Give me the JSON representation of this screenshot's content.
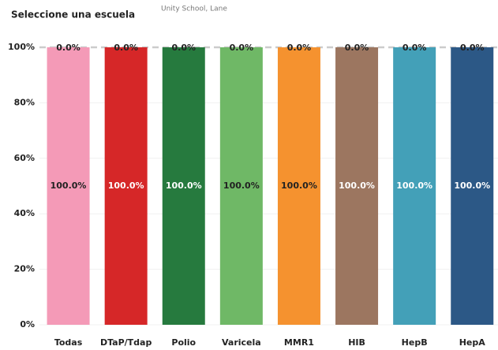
{
  "chart_data": {
    "type": "bar",
    "title": "Seleccione una escuela",
    "subtitle": "Unity School, Lane",
    "categories": [
      "Todas",
      "DTaP/Tdap",
      "Polio",
      "Varicela",
      "MMR1",
      "HIB",
      "HepB",
      "HepA"
    ],
    "colors": [
      "#f49ab7",
      "#d62728",
      "#267a3e",
      "#6fb866",
      "#f5922f",
      "#9c7660",
      "#43a0b8",
      "#2c5886"
    ],
    "series": [
      {
        "values": [
          100,
          100,
          100,
          100,
          100,
          100,
          100,
          100
        ],
        "value_labels": [
          "100.0%",
          "100.0%",
          "100.0%",
          "100.0%",
          "100.0%",
          "100.0%",
          "100.0%",
          "100.0%"
        ]
      },
      {
        "values": [
          0,
          0,
          0,
          0,
          0,
          0,
          0,
          0
        ],
        "value_labels": [
          "0.0%",
          "0.0%",
          "0.0%",
          "0.0%",
          "0.0%",
          "0.0%",
          "0.0%",
          "0.0%"
        ]
      }
    ],
    "stacked": true,
    "ylim": [
      0,
      100
    ],
    "yticks": [
      {
        "value": 0,
        "label": "0%"
      },
      {
        "value": 20,
        "label": "20%"
      },
      {
        "value": 40,
        "label": "40%"
      },
      {
        "value": 60,
        "label": "60%"
      },
      {
        "value": 80,
        "label": "80%"
      },
      {
        "value": 100,
        "label": "100%"
      }
    ],
    "grid": true
  }
}
